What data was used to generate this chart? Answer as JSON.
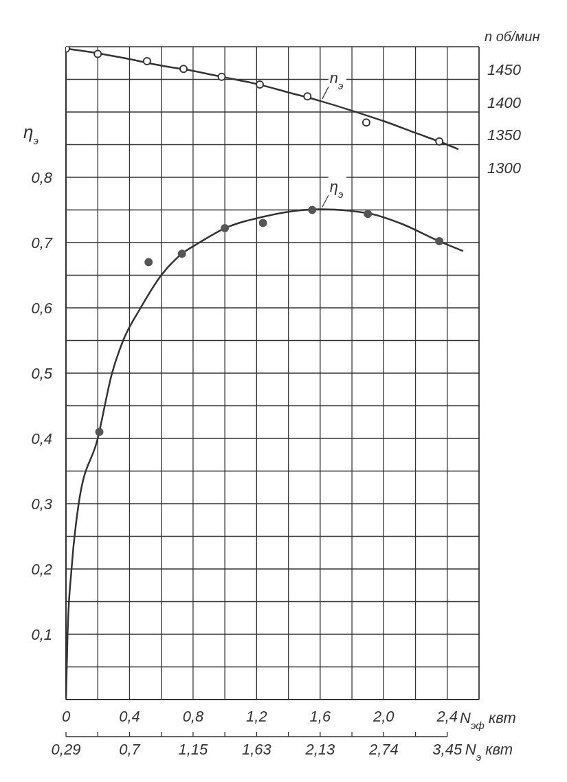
{
  "chart_data": {
    "type": "line",
    "xlabel": "N$_{эф}$ квт",
    "ylabel": "η$_{э}$",
    "y2label": "n об/мин",
    "annotations": [
      "0,29",
      "0,7",
      "1,15",
      "1,63",
      "2,13",
      "2,74",
      "3,45",
      "N$_{э}$ квт"
    ],
    "xlim": [
      0,
      2.6
    ],
    "xticks": [
      {
        "value": 0,
        "label": "0"
      },
      {
        "value": 0.2,
        "label": null
      },
      {
        "value": 0.4,
        "label": "0,4"
      },
      {
        "value": 0.6,
        "label": null
      },
      {
        "value": 0.8,
        "label": "0,8"
      },
      {
        "value": 1.0,
        "label": null
      },
      {
        "value": 1.2,
        "label": "1,2"
      },
      {
        "value": 1.4,
        "label": null
      },
      {
        "value": 1.6,
        "label": "1,6"
      },
      {
        "value": 1.8,
        "label": null
      },
      {
        "value": 2.0,
        "label": "2,0"
      },
      {
        "value": 2.2,
        "label": null
      },
      {
        "value": 2.4,
        "label": "2,4"
      },
      {
        "value": 2.6,
        "label": null
      }
    ],
    "ylim": [
      0,
      1.0
    ],
    "yticks": [
      {
        "value": 0,
        "label": null
      },
      {
        "value": 0.05,
        "label": null
      },
      {
        "value": 0.1,
        "label": "0,1"
      },
      {
        "value": 0.15,
        "label": null
      },
      {
        "value": 0.2,
        "label": "0,2"
      },
      {
        "value": 0.25,
        "label": null
      },
      {
        "value": 0.3,
        "label": "0,3"
      },
      {
        "value": 0.35,
        "label": null
      },
      {
        "value": 0.4,
        "label": "0,4"
      },
      {
        "value": 0.45,
        "label": null
      },
      {
        "value": 0.5,
        "label": "0,5"
      },
      {
        "value": 0.55,
        "label": null
      },
      {
        "value": 0.6,
        "label": "0,6"
      },
      {
        "value": 0.65,
        "label": null
      },
      {
        "value": 0.7,
        "label": "0,7"
      },
      {
        "value": 0.75,
        "label": null
      },
      {
        "value": 0.8,
        "label": "0,8"
      },
      {
        "value": 0.85,
        "label": null
      },
      {
        "value": 0.9,
        "label": null
      },
      {
        "value": 0.95,
        "label": null
      },
      {
        "value": 1.0,
        "label": null
      }
    ],
    "y2lim": [
      500,
      1500
    ],
    "y2ticks": [
      1300,
      1350,
      1400,
      1450
    ],
    "grid": true,
    "line_style": "solid",
    "marker": "none",
    "series": [
      {
        "name": "n$_{э}$",
        "axis": "y2",
        "color": "#333333",
        "x": [
          0,
          0.2,
          0.4,
          0.6,
          0.8,
          1.0,
          1.2,
          1.4,
          1.6,
          1.8,
          2.0,
          2.2,
          2.4,
          2.47
        ],
        "values": [
          1497,
          1490,
          1481,
          1471,
          1463,
          1453,
          1443,
          1430,
          1417,
          1402,
          1386,
          1368,
          1350,
          1343
        ]
      },
      {
        "type": "scatter",
        "axis": "y2",
        "color": "#333333",
        "marker": "circle",
        "x": [
          0,
          0.2,
          0.51,
          0.74,
          0.98,
          1.22,
          1.52,
          1.89,
          2.35
        ],
        "values": [
          1497,
          1489,
          1478,
          1466,
          1454,
          1442,
          1424,
          1384,
          1355
        ]
      },
      {
        "name": "η$_{э}$",
        "color": "#333333",
        "x": [
          0,
          0.01,
          0.035,
          0.08,
          0.2,
          0.29,
          0.36,
          0.47,
          0.6,
          0.73,
          0.84,
          1.0,
          1.25,
          1.5,
          1.6,
          1.9,
          2.1,
          2.35,
          2.5
        ],
        "values": [
          0,
          0.1,
          0.2,
          0.3,
          0.4,
          0.5,
          0.55,
          0.6,
          0.65,
          0.683,
          0.7,
          0.722,
          0.74,
          0.75,
          0.751,
          0.745,
          0.73,
          0.702,
          0.687
        ]
      },
      {
        "type": "scatter",
        "color": "#555555",
        "marker": "circle",
        "x": [
          0.21,
          0.52,
          0.73,
          1.0,
          1.24,
          1.55,
          1.9,
          2.35
        ],
        "values": [
          0.41,
          0.67,
          0.683,
          0.722,
          0.73,
          0.75,
          0.744,
          0.702
        ]
      }
    ]
  }
}
